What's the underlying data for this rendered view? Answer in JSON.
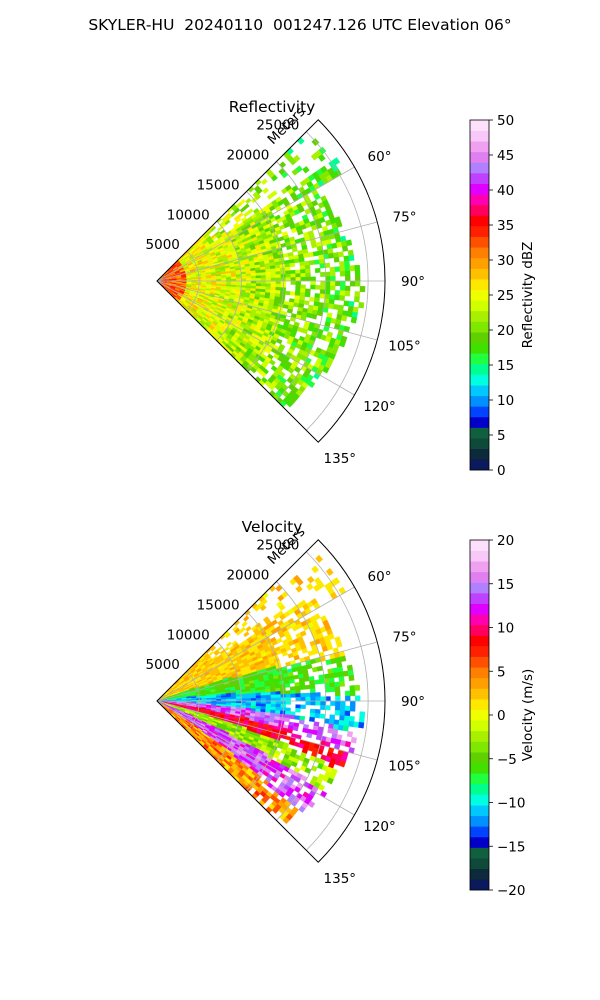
{
  "title": "SKYLER-HU  20240110  001247.126 UTC Elevation 06°",
  "chart_data": [
    {
      "type": "heatmap",
      "subtitle": "Reflectivity",
      "radial_label": "Meters",
      "range_ticks": [
        5000,
        10000,
        15000,
        20000,
        25000
      ],
      "range_max": 27000,
      "azimuth_min": 45,
      "azimuth_max": 135,
      "azimuth_ticks": [
        "60°",
        "75°",
        "90°",
        "105°",
        "120°",
        "135°"
      ],
      "grid": true,
      "colorbar": {
        "label": "Reflectivity dBZ",
        "min": 0,
        "max": 50,
        "ticks": [
          0,
          5,
          10,
          15,
          20,
          25,
          30,
          35,
          40,
          45,
          50
        ],
        "colors": [
          "#0a1a5c",
          "#0c2a3c",
          "#0e4a3a",
          "#106040",
          "#0000c8",
          "#0044ff",
          "#0090ff",
          "#00c8ff",
          "#00ffe0",
          "#00ff90",
          "#20ff40",
          "#40e000",
          "#5fd000",
          "#80e800",
          "#a8f000",
          "#d0ff00",
          "#f0ff00",
          "#ffe800",
          "#ffc000",
          "#ffa000",
          "#ff8000",
          "#ff5000",
          "#ff2000",
          "#ff0000",
          "#ff0060",
          "#ff00b0",
          "#e000ff",
          "#c040ff",
          "#b080ff",
          "#e080f0",
          "#f0a0f0",
          "#f8c8f8",
          "#fce0fc"
        ]
      }
    },
    {
      "type": "heatmap",
      "subtitle": "Velocity",
      "radial_label": "Meters",
      "range_ticks": [
        5000,
        10000,
        15000,
        20000,
        25000
      ],
      "range_max": 27000,
      "azimuth_min": 45,
      "azimuth_max": 135,
      "azimuth_ticks": [
        "60°",
        "75°",
        "90°",
        "105°",
        "120°",
        "135°"
      ],
      "grid": true,
      "colorbar": {
        "label": "Velocity (m/s)",
        "min": -20,
        "max": 20,
        "ticks": [
          -20,
          -15,
          -10,
          -5,
          0,
          5,
          10,
          15,
          20
        ],
        "colors": [
          "#0a1a5c",
          "#0c2a3c",
          "#0e4a3a",
          "#106040",
          "#0000c8",
          "#0044ff",
          "#0090ff",
          "#00c8ff",
          "#00ffe0",
          "#00ff90",
          "#20ff40",
          "#40e000",
          "#5fd000",
          "#80e800",
          "#a8f000",
          "#d0ff00",
          "#f0ff00",
          "#ffe800",
          "#ffc000",
          "#ffa000",
          "#ff8000",
          "#ff5000",
          "#ff2000",
          "#ff0000",
          "#ff0060",
          "#ff00b0",
          "#e000ff",
          "#c040ff",
          "#b080ff",
          "#e080f0",
          "#f0a0f0",
          "#f8c8f8",
          "#fce0fc"
        ]
      }
    }
  ]
}
